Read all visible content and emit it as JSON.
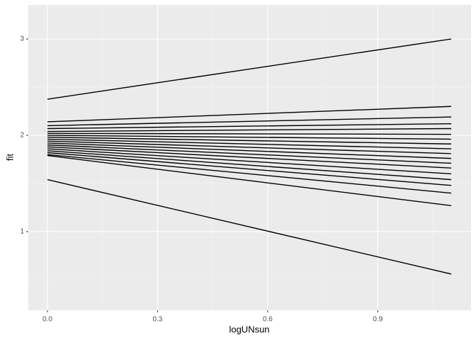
{
  "chart_data": {
    "type": "line",
    "x_label": "logUNsun",
    "y_label": "fit",
    "x": [
      0,
      1.1
    ],
    "color": "#000000",
    "grid": true,
    "xlim": [
      -0.052,
      1.154
    ],
    "ylim": [
      0.184,
      3.353
    ],
    "xticks": [
      {
        "value": 0,
        "label": "0.0"
      },
      0.3,
      0.6,
      0.9
    ],
    "yticks": [
      1,
      2,
      3
    ],
    "series": [
      {
        "values": [
          2.375,
          3.0
        ]
      },
      {
        "values": [
          2.14,
          2.3
        ]
      },
      {
        "values": [
          2.1,
          2.19
        ]
      },
      {
        "values": [
          2.07,
          2.12
        ]
      },
      {
        "values": [
          2.04,
          2.07
        ]
      },
      {
        "values": [
          2.02,
          2.01
        ]
      },
      {
        "values": [
          2.0,
          1.96
        ]
      },
      {
        "values": [
          1.98,
          1.91
        ]
      },
      {
        "values": [
          1.96,
          1.86
        ]
      },
      {
        "values": [
          1.94,
          1.81
        ]
      },
      {
        "values": [
          1.92,
          1.76
        ]
      },
      {
        "values": [
          1.9,
          1.71
        ]
      },
      {
        "values": [
          1.88,
          1.66
        ]
      },
      {
        "values": [
          1.86,
          1.6
        ]
      },
      {
        "values": [
          1.84,
          1.54
        ]
      },
      {
        "values": [
          1.82,
          1.48
        ]
      },
      {
        "values": [
          1.8,
          1.4
        ]
      },
      {
        "values": [
          1.79,
          1.27
        ]
      },
      {
        "values": [
          1.54,
          0.56
        ]
      }
    ]
  }
}
